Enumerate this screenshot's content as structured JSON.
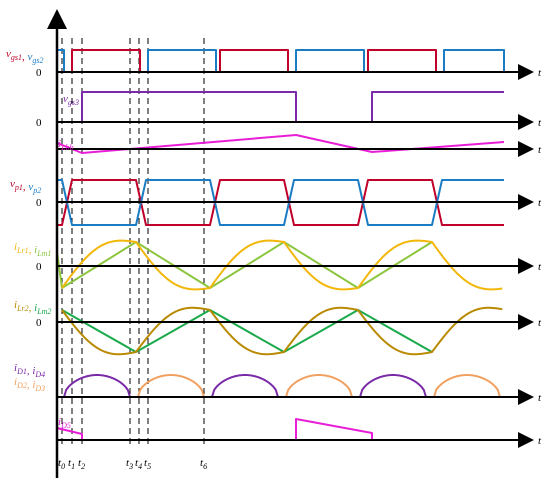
{
  "axis": {
    "t_label": "t",
    "zero_label": "0"
  },
  "colors": {
    "red": "#c0002a",
    "blue": "#1a7cc4",
    "purple": "#7a2aa8",
    "magenta": "#e81ed7",
    "yellow": "#f2b70a",
    "lightgreen": "#8cc63f",
    "darkyellow": "#b98a00",
    "green": "#1aaa4b",
    "orange": "#f0a060"
  },
  "rows": [
    {
      "key": "vgs",
      "label_parts": [
        {
          "b": "v",
          "s": "gs1",
          "c": "red"
        },
        {
          "b": ", ",
          "s": "",
          "c": "red"
        },
        {
          "b": "v",
          "s": "gs2",
          "c": "blue"
        }
      ]
    },
    {
      "key": "vgs3",
      "label_parts": [
        {
          "b": "v",
          "s": "gs3",
          "c": "purple"
        }
      ]
    },
    {
      "key": "iLbb",
      "label_parts": [
        {
          "b": "i",
          "s": "Lbb",
          "c": "magenta"
        }
      ]
    },
    {
      "key": "vp",
      "label_parts": [
        {
          "b": "v",
          "s": "p1",
          "c": "red"
        },
        {
          "b": ", ",
          "s": "",
          "c": "red"
        },
        {
          "b": "v",
          "s": "p2",
          "c": "blue"
        }
      ]
    },
    {
      "key": "iLr1",
      "label_parts": [
        {
          "b": "i",
          "s": "Lr1",
          "c": "yellow"
        },
        {
          "b": ", ",
          "s": "",
          "c": "yellow"
        },
        {
          "b": "i",
          "s": "Lm1",
          "c": "lightgreen"
        }
      ]
    },
    {
      "key": "iLr2",
      "label_parts": [
        {
          "b": "i",
          "s": "Lr2",
          "c": "darkyellow"
        },
        {
          "b": ", ",
          "s": "",
          "c": "darkyellow"
        },
        {
          "b": "i",
          "s": "Lm2",
          "c": "green"
        }
      ]
    },
    {
      "key": "iD",
      "label_parts": [
        {
          "b": "i",
          "s": "D1",
          "c": "purple"
        },
        {
          "b": ", ",
          "s": "",
          "c": "purple"
        },
        {
          "b": "i",
          "s": "D4",
          "c": "purple"
        }
      ],
      "label2_parts": [
        {
          "b": "i",
          "s": "D2",
          "c": "orange"
        },
        {
          "b": ", ",
          "s": "",
          "c": "orange"
        },
        {
          "b": "i",
          "s": "D3",
          "c": "orange"
        }
      ]
    },
    {
      "key": "iD5",
      "label_parts": [
        {
          "b": "i",
          "s": "D5",
          "c": "magenta"
        }
      ]
    }
  ],
  "time_marks": [
    {
      "b": "t",
      "s": "0"
    },
    {
      "b": "t",
      "s": "1"
    },
    {
      "b": "t",
      "s": "2"
    },
    {
      "b": "t",
      "s": "3"
    },
    {
      "b": "t",
      "s": "4"
    },
    {
      "b": "t",
      "s": "5"
    },
    {
      "b": "t",
      "s": "6"
    }
  ]
}
